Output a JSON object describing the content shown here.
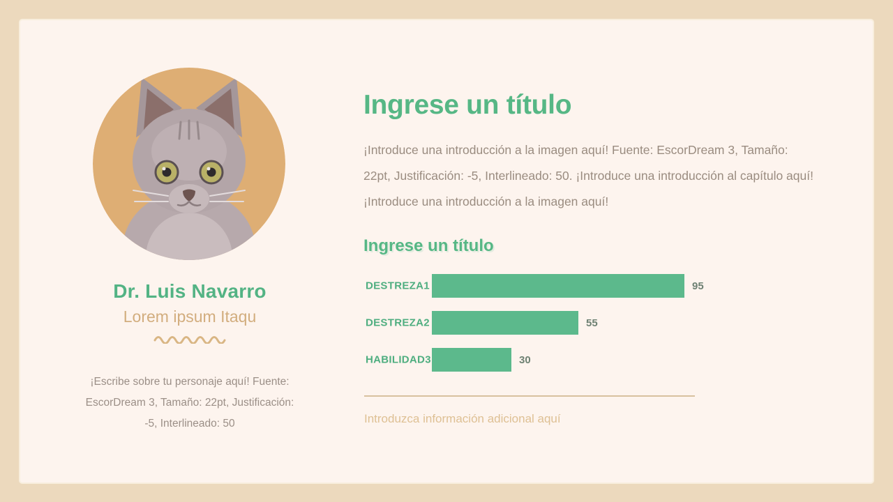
{
  "theme": {
    "page_bg": "#ecd9bd",
    "card_bg": "#fdf4ee",
    "accent_green": "#56b785",
    "accent_tan": "#d2ad7e",
    "photo_bg": "#deae74",
    "body_text": "#9a8c80",
    "bar_color": "#5cb98c"
  },
  "profile": {
    "photo_icon": "kitten-photo",
    "name": "Dr. Luis Navarro",
    "subtitle": "Lorem ipsum Itaqu",
    "divider_icon": "squiggle-wave",
    "description": "¡Escribe sobre tu personaje aquí! Fuente: EscorDream 3, Tamaño: 22pt, Justificación: -5, Interlineado: 50"
  },
  "main": {
    "title": "Ingrese un título",
    "intro": "¡Introduce una introducción a la imagen aquí! Fuente: EscorDream 3, Tamaño: 22pt, Justificación: -5, Interlineado: 50. ¡Introduce una introducción al capítulo aquí! ¡Introduce una introducción a la imagen aquí!"
  },
  "chart_data": {
    "type": "bar",
    "orientation": "horizontal",
    "title": "Ingrese un título",
    "categories": [
      "DESTREZA1",
      "DESTREZA2",
      "HABILIDAD3"
    ],
    "values": [
      95,
      55,
      30
    ],
    "xlim": [
      0,
      100
    ],
    "value_labels_shown": true,
    "grid": false,
    "bar_color": "#5cb98c"
  },
  "footer": {
    "note": "Introduzca información adicional aquí"
  }
}
